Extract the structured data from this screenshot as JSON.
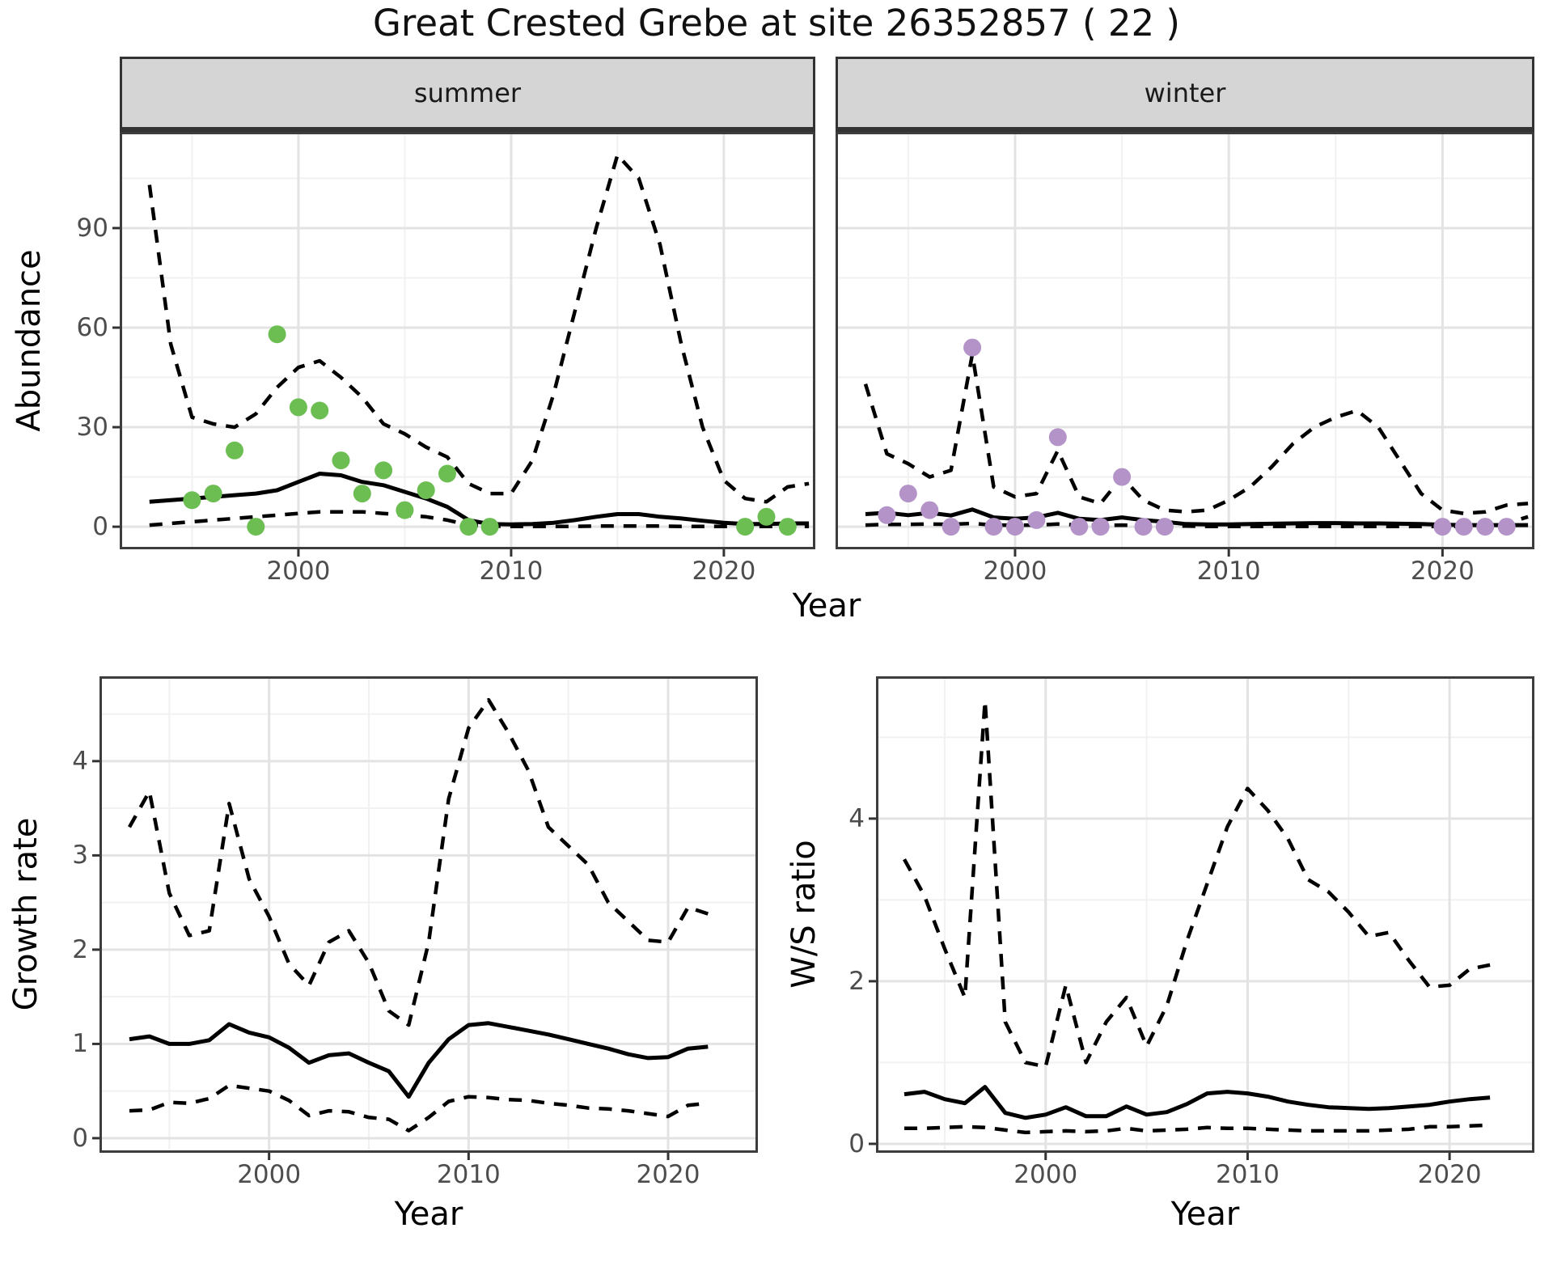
{
  "title": "Great Crested Grebe at site 26352857 ( 22 )",
  "axis": {
    "top": {
      "ylabel": "Abundance",
      "xlabel": "Year"
    },
    "growth": {
      "ylabel": "Growth rate",
      "xlabel": "Year"
    },
    "ws": {
      "ylabel": "W/S ratio",
      "xlabel": "Year"
    }
  },
  "colors": {
    "summer_points": "#6cbe53",
    "winter_points": "#b494c8",
    "line": "#000000",
    "strip_bg": "#d5d5d5",
    "panel_border": "#3d3d3d",
    "grid_major": "#e3e3e3",
    "grid_minor": "#f1f1f1",
    "tick_text": "#4d4d4d"
  },
  "chart_data": [
    {
      "panel": "summer",
      "type": "line+scatter",
      "facet_label": "summer",
      "xlabel": "Year",
      "ylabel": "Abundance",
      "xlim": [
        1991.6,
        2024.3
      ],
      "ylim": [
        -6.8,
        119
      ],
      "xticks": [
        2000,
        2010,
        2020
      ],
      "yticks": [
        0,
        30,
        60,
        90
      ],
      "xminor": [
        1995,
        2005,
        2015
      ],
      "yminor": [
        15,
        45,
        75,
        105
      ],
      "show_yaxis": true,
      "point_color": "#6cbe53",
      "lines": {
        "start_year": 1993,
        "mean": [
          7.5,
          8,
          8.5,
          9,
          9.5,
          10,
          11,
          13.5,
          16,
          15.5,
          13.5,
          12.5,
          10.5,
          8.5,
          6,
          2,
          0.8,
          0.7,
          0.8,
          1.2,
          2,
          3,
          3.8,
          3.8,
          3,
          2.5,
          1.8,
          1.2,
          0.8,
          0.8,
          1,
          1
        ],
        "lower": [
          0.5,
          1,
          1.5,
          2,
          2.5,
          3,
          3.5,
          4,
          4.5,
          4.5,
          4.5,
          4,
          3.5,
          3,
          2,
          0.5,
          0.2,
          0.1,
          0.1,
          0.1,
          0.1,
          0.2,
          0.2,
          0.2,
          0.2,
          0.1,
          0.1,
          0.1,
          0.1,
          0.1,
          0.1,
          0.1
        ],
        "upper": [
          103,
          55,
          33,
          31,
          30,
          34,
          42,
          48,
          50,
          45,
          39,
          31,
          28,
          24,
          21,
          13,
          10,
          10,
          20,
          40,
          65,
          90,
          112,
          105,
          85,
          55,
          30,
          14,
          8.5,
          7.5,
          12,
          13
        ]
      },
      "points": {
        "years": [
          1995,
          1996,
          1997,
          1998,
          1999,
          2000,
          2001,
          2002,
          2003,
          2004,
          2005,
          2006,
          2007,
          2008,
          2009,
          2021,
          2022,
          2023
        ],
        "values": [
          8,
          10,
          23,
          0,
          58,
          36,
          35,
          20,
          10,
          17,
          5,
          11,
          16,
          0,
          0,
          0,
          3,
          0
        ]
      }
    },
    {
      "panel": "winter",
      "type": "line+scatter",
      "facet_label": "winter",
      "xlabel": "Year",
      "ylabel": "Abundance",
      "xlim": [
        1991.6,
        2024.3
      ],
      "ylim": [
        -6.8,
        119
      ],
      "xticks": [
        2000,
        2010,
        2020
      ],
      "yticks": [
        0,
        30,
        60,
        90
      ],
      "xminor": [
        1995,
        2005,
        2015
      ],
      "yminor": [
        15,
        45,
        75,
        105
      ],
      "show_yaxis": false,
      "point_color": "#b494c8",
      "lines": {
        "start_year": 1993,
        "mean": [
          3.8,
          4.2,
          3.5,
          4.2,
          3.4,
          5.2,
          2.8,
          2.4,
          2.8,
          4.2,
          2.4,
          2,
          2.8,
          2,
          1.5,
          0.8,
          0.7,
          0.7,
          0.8,
          0.9,
          1,
          1.1,
          1.1,
          1,
          1,
          0.9,
          0.8,
          0.6,
          0.5,
          0.5,
          0.5,
          0.5
        ],
        "lower": [
          0.5,
          0.7,
          0.7,
          0.8,
          0.7,
          1,
          0.5,
          0.5,
          0.5,
          0.8,
          0.5,
          0.4,
          0.5,
          0.4,
          0.3,
          0.2,
          0.1,
          0.1,
          0.1,
          0.1,
          0.1,
          0.1,
          0.1,
          0.1,
          0.1,
          0.1,
          0.1,
          0.1,
          0.1,
          0.1,
          1,
          3
        ],
        "upper": [
          43,
          22,
          19,
          15,
          17,
          52,
          12,
          9,
          10,
          23,
          9,
          7,
          15,
          8,
          5,
          4.5,
          5,
          8,
          12,
          18,
          25,
          30,
          33,
          35,
          30,
          20,
          10,
          5,
          4,
          4.5,
          6.5,
          7
        ]
      },
      "points": {
        "years": [
          1994,
          1995,
          1996,
          1997,
          1998,
          1999,
          2000,
          2001,
          2002,
          2003,
          2004,
          2005,
          2006,
          2007,
          2020,
          2021,
          2022,
          2023
        ],
        "values": [
          3.5,
          10,
          5,
          0,
          54,
          0,
          0,
          2,
          27,
          0,
          0,
          15,
          0,
          0,
          0,
          0,
          0,
          0
        ]
      }
    },
    {
      "panel": "growth",
      "type": "line",
      "facet_label": "",
      "xlabel": "Year",
      "ylabel": "Growth rate",
      "xlim": [
        1991.5,
        2024.5
      ],
      "ylim": [
        -0.155,
        4.9
      ],
      "xticks": [
        2000,
        2010,
        2020
      ],
      "yticks": [
        0,
        1,
        2,
        3,
        4
      ],
      "xminor": [
        1995,
        2005,
        2015
      ],
      "yminor": [
        0.5,
        1.5,
        2.5,
        3.5,
        4.5
      ],
      "show_yaxis": true,
      "point_color": "",
      "lines": {
        "start_year": 1993,
        "mean": [
          1.05,
          1.08,
          1.0,
          1.0,
          1.04,
          1.21,
          1.12,
          1.07,
          0.96,
          0.8,
          0.88,
          0.9,
          0.8,
          0.71,
          0.44,
          0.8,
          1.05,
          1.2,
          1.22,
          1.18,
          1.14,
          1.1,
          1.05,
          1.0,
          0.95,
          0.89,
          0.85,
          0.86,
          0.95,
          0.97
        ],
        "lower": [
          0.29,
          0.3,
          0.38,
          0.37,
          0.42,
          0.56,
          0.53,
          0.5,
          0.4,
          0.24,
          0.29,
          0.28,
          0.22,
          0.2,
          0.08,
          0.22,
          0.39,
          0.44,
          0.43,
          0.41,
          0.4,
          0.37,
          0.35,
          0.32,
          0.31,
          0.29,
          0.26,
          0.23,
          0.35,
          0.37
        ],
        "upper": [
          3.3,
          3.68,
          2.6,
          2.15,
          2.2,
          3.55,
          2.75,
          2.35,
          1.85,
          1.62,
          2.08,
          2.2,
          1.86,
          1.35,
          1.2,
          2.08,
          3.6,
          4.35,
          4.65,
          4.3,
          3.9,
          3.3,
          3.1,
          2.9,
          2.5,
          2.3,
          2.1,
          2.08,
          2.45,
          2.38
        ]
      },
      "points": {
        "years": [],
        "values": []
      }
    },
    {
      "panel": "ws",
      "type": "line",
      "facet_label": "",
      "xlabel": "Year",
      "ylabel": "W/S ratio",
      "xlim": [
        1991.6,
        2024.2
      ],
      "ylim": [
        -0.11,
        5.75
      ],
      "xticks": [
        2000,
        2010,
        2020
      ],
      "yticks": [
        0,
        2,
        4
      ],
      "xminor": [
        1995,
        2005,
        2015
      ],
      "yminor": [
        1,
        3,
        5
      ],
      "show_yaxis": true,
      "point_color": "",
      "lines": {
        "start_year": 1993,
        "mean": [
          0.61,
          0.64,
          0.55,
          0.5,
          0.7,
          0.38,
          0.32,
          0.36,
          0.45,
          0.34,
          0.34,
          0.46,
          0.36,
          0.39,
          0.49,
          0.62,
          0.64,
          0.62,
          0.58,
          0.52,
          0.48,
          0.45,
          0.44,
          0.43,
          0.44,
          0.46,
          0.48,
          0.52,
          0.55,
          0.57
        ],
        "lower": [
          0.19,
          0.19,
          0.2,
          0.21,
          0.2,
          0.17,
          0.14,
          0.15,
          0.16,
          0.15,
          0.16,
          0.19,
          0.16,
          0.17,
          0.18,
          0.2,
          0.19,
          0.19,
          0.18,
          0.17,
          0.16,
          0.16,
          0.16,
          0.16,
          0.17,
          0.18,
          0.21,
          0.21,
          0.22,
          0.23
        ],
        "upper": [
          3.5,
          3.05,
          2.4,
          1.8,
          5.45,
          1.5,
          1.0,
          0.95,
          1.95,
          1.0,
          1.5,
          1.8,
          1.2,
          1.7,
          2.5,
          3.2,
          3.9,
          4.37,
          4.1,
          3.75,
          3.25,
          3.1,
          2.85,
          2.55,
          2.6,
          2.25,
          1.93,
          1.95,
          2.15,
          2.2
        ]
      },
      "points": {
        "years": [],
        "values": []
      }
    }
  ]
}
